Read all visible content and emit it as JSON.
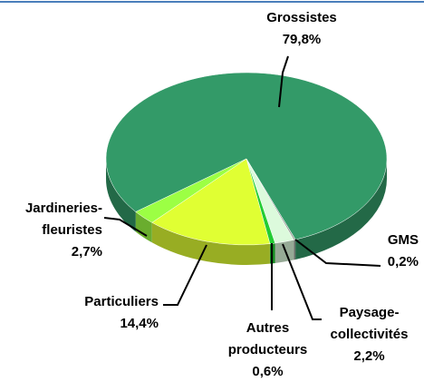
{
  "chart_data": {
    "type": "pie",
    "categories": [
      "Grossistes",
      "GMS",
      "Paysage-collectivités",
      "Autres producteurs",
      "Particuliers",
      "Jardineries-fleuristes"
    ],
    "values": [
      79.8,
      0.2,
      2.2,
      0.6,
      14.4,
      2.7
    ],
    "value_labels": [
      "79,8%",
      "0,2%",
      "2,2%",
      "0,6%",
      "14,4%",
      "2,7%"
    ],
    "colors": [
      "#339a68",
      "#9aa39a",
      "#dcfadc",
      "#22cc33",
      "#e0ff33",
      "#9cff44"
    ]
  }
}
